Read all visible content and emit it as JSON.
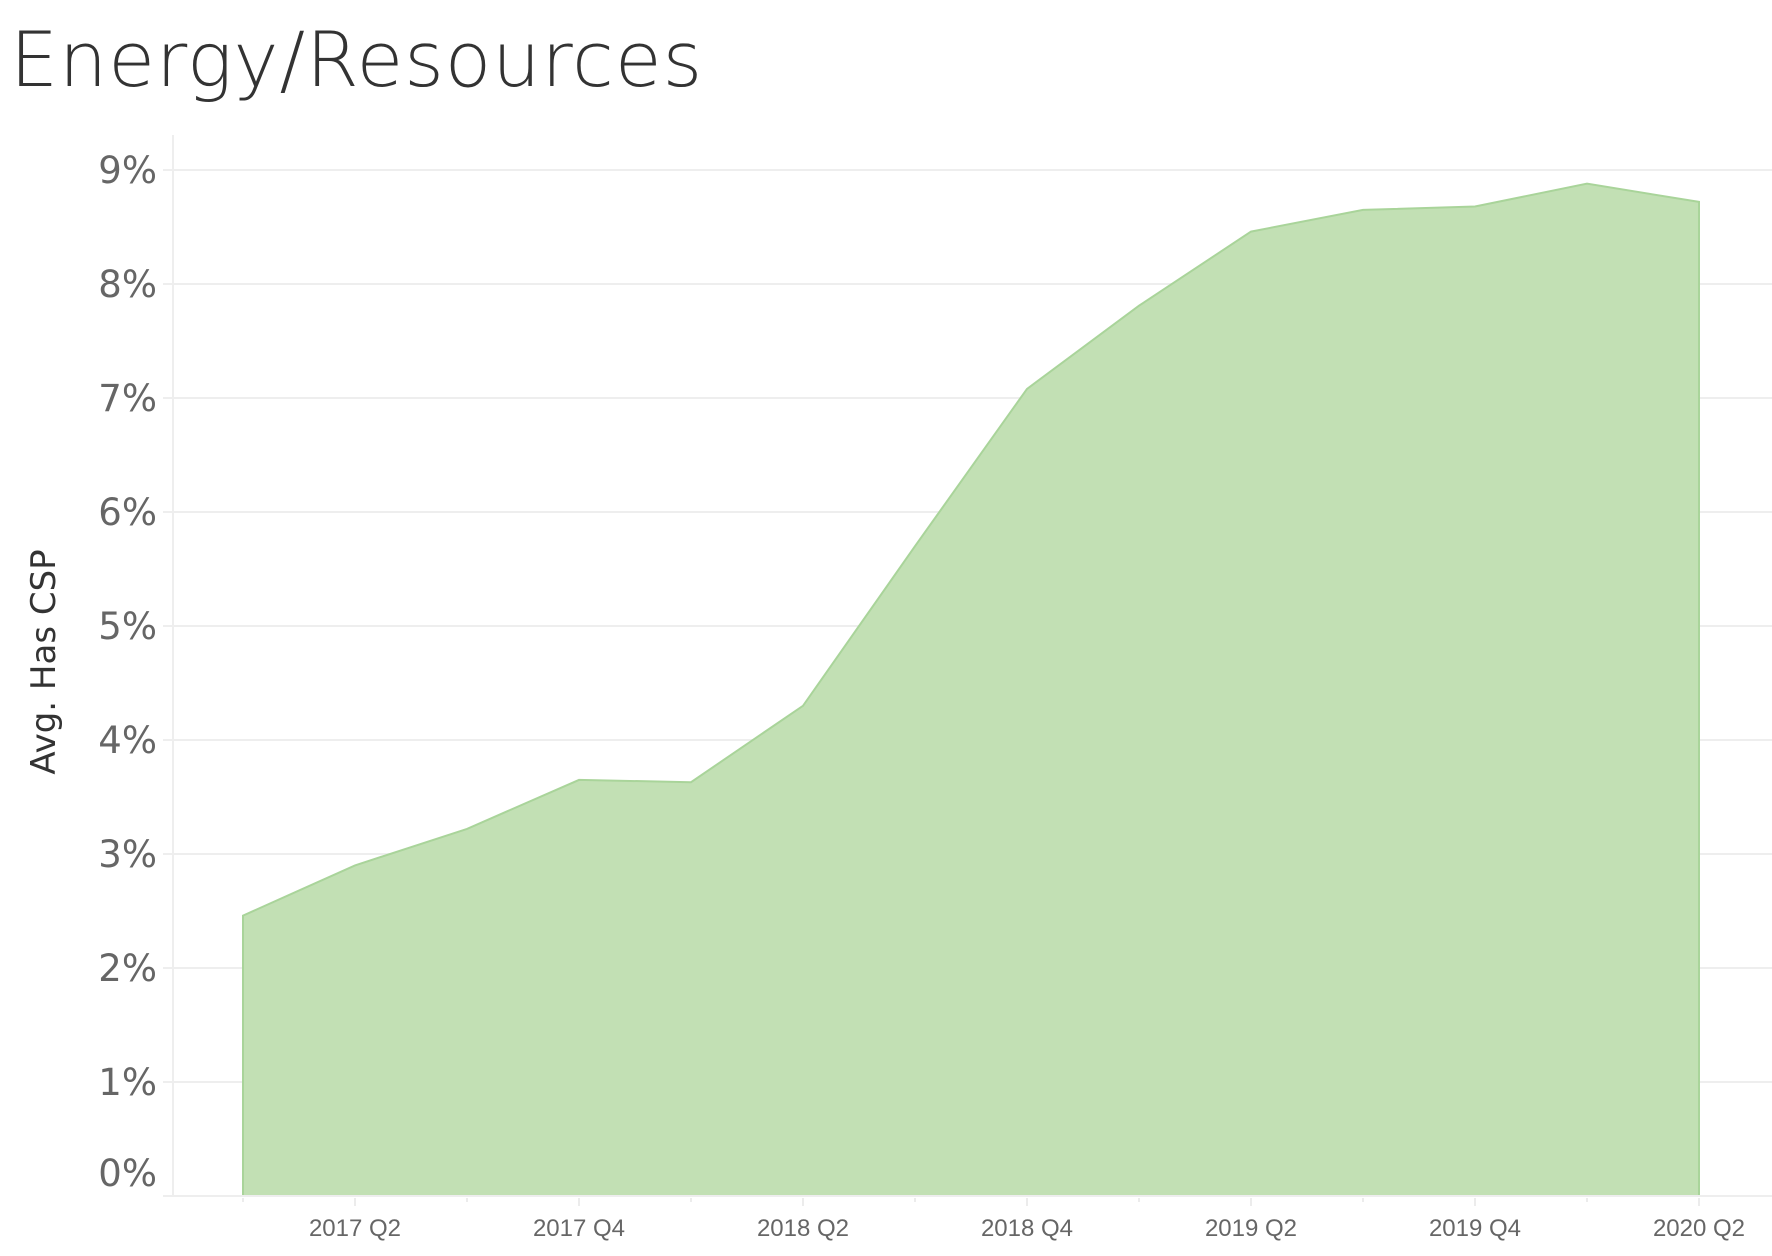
{
  "header": {
    "title": "Energy/Resources"
  },
  "chart_data": {
    "type": "area",
    "title": "Energy/Resources",
    "xlabel": "",
    "ylabel": "Avg. Has CSP",
    "x": [
      "2017 Q1",
      "2017 Q2",
      "2017 Q3",
      "2017 Q4",
      "2018 Q1",
      "2018 Q2",
      "2018 Q3",
      "2018 Q4",
      "2019 Q1",
      "2019 Q2",
      "2019 Q3",
      "2019 Q4",
      "2020 Q1",
      "2020 Q2"
    ],
    "values": [
      2.46,
      2.9,
      3.22,
      3.65,
      3.63,
      4.3,
      5.7,
      7.08,
      7.81,
      8.46,
      8.65,
      8.68,
      8.88,
      8.72
    ],
    "value_unit": "%",
    "x_tick_labels": [
      "2017 Q2",
      "2017 Q4",
      "2018 Q2",
      "2018 Q4",
      "2019 Q2",
      "2019 Q4",
      "2020 Q2"
    ],
    "y_tick_labels": [
      "0%",
      "1%",
      "2%",
      "3%",
      "4%",
      "5%",
      "6%",
      "7%",
      "8%",
      "9%"
    ],
    "ylim": [
      0,
      9.4
    ],
    "grid": true,
    "legend": null,
    "colors": {
      "fill": "#c2e0b4",
      "stroke": "#a9d49a",
      "grid": "#eeeeee",
      "tick_text": "#666666",
      "title_text": "#333333"
    }
  }
}
